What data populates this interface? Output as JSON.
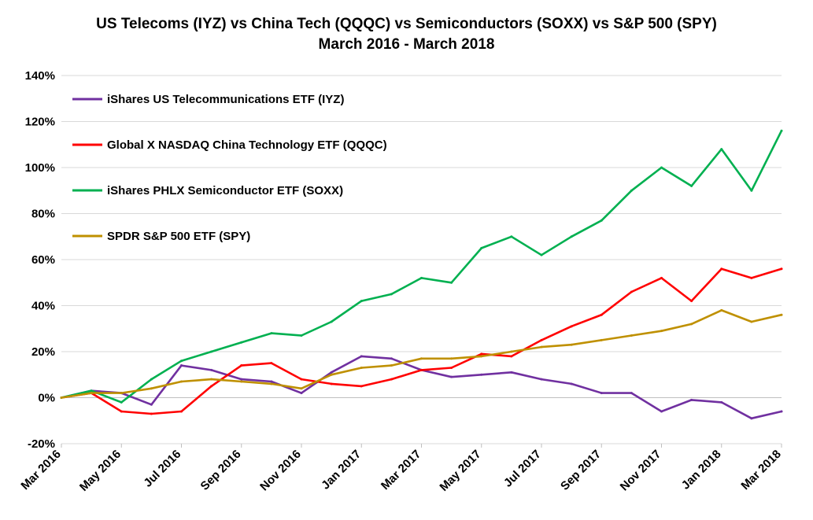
{
  "chart_data": {
    "type": "line",
    "title": "US Telecoms (IYZ) vs China Tech (QQQC) vs Semiconductors (SOXX) vs S&P 500 (SPY)",
    "subtitle": "March 2016 - March 2018",
    "xlabel": "",
    "ylabel": "",
    "ylim": [
      -20,
      140
    ],
    "y_ticks": [
      "-20%",
      "0%",
      "20%",
      "40%",
      "60%",
      "80%",
      "100%",
      "120%",
      "140%"
    ],
    "x_tick_labels": [
      "Mar 2016",
      "May 2016",
      "Jul 2016",
      "Sep 2016",
      "Nov 2016",
      "Jan 2017",
      "Mar 2017",
      "May 2017",
      "Jul 2017",
      "Sep 2017",
      "Nov 2017",
      "Jan 2018",
      "Mar 2018"
    ],
    "x": [
      "Mar 2016",
      "Apr 2016",
      "May 2016",
      "Jun 2016",
      "Jul 2016",
      "Aug 2016",
      "Sep 2016",
      "Oct 2016",
      "Nov 2016",
      "Dec 2016",
      "Jan 2017",
      "Feb 2017",
      "Mar 2017",
      "Apr 2017",
      "May 2017",
      "Jun 2017",
      "Jul 2017",
      "Aug 2017",
      "Sep 2017",
      "Oct 2017",
      "Nov 2017",
      "Dec 2017",
      "Jan 2018",
      "Feb 2018",
      "Mar 2018"
    ],
    "grid": "horizontal",
    "legend_position": "top-left",
    "series": [
      {
        "name": "iShares US Telecommunications ETF (IYZ)",
        "color": "#7030A0",
        "values": [
          0,
          3,
          2,
          -3,
          14,
          12,
          8,
          7,
          2,
          11,
          18,
          17,
          12,
          9,
          10,
          11,
          8,
          6,
          2,
          2,
          -6,
          -1,
          -2,
          -9,
          -6
        ]
      },
      {
        "name": "Global X NASDAQ China Technology ETF (QQQC)",
        "color": "#FF0000",
        "values": [
          0,
          2,
          -6,
          -7,
          -6,
          5,
          14,
          15,
          8,
          6,
          5,
          8,
          12,
          13,
          19,
          18,
          25,
          31,
          36,
          46,
          52,
          42,
          56,
          52,
          56
        ]
      },
      {
        "name": "iShares PHLX Semiconductor ETF (SOXX)",
        "color": "#00B050",
        "values": [
          0,
          3,
          -2,
          8,
          16,
          20,
          24,
          28,
          27,
          33,
          42,
          45,
          52,
          50,
          65,
          70,
          62,
          70,
          77,
          90,
          100,
          92,
          108,
          90,
          116
        ]
      },
      {
        "name": "SPDR S&P 500 ETF (SPY)",
        "color": "#BF9000",
        "values": [
          0,
          2,
          2,
          4,
          7,
          8,
          7,
          6,
          4,
          10,
          13,
          14,
          17,
          17,
          18,
          20,
          22,
          23,
          25,
          27,
          29,
          32,
          38,
          33,
          36
        ]
      }
    ]
  }
}
